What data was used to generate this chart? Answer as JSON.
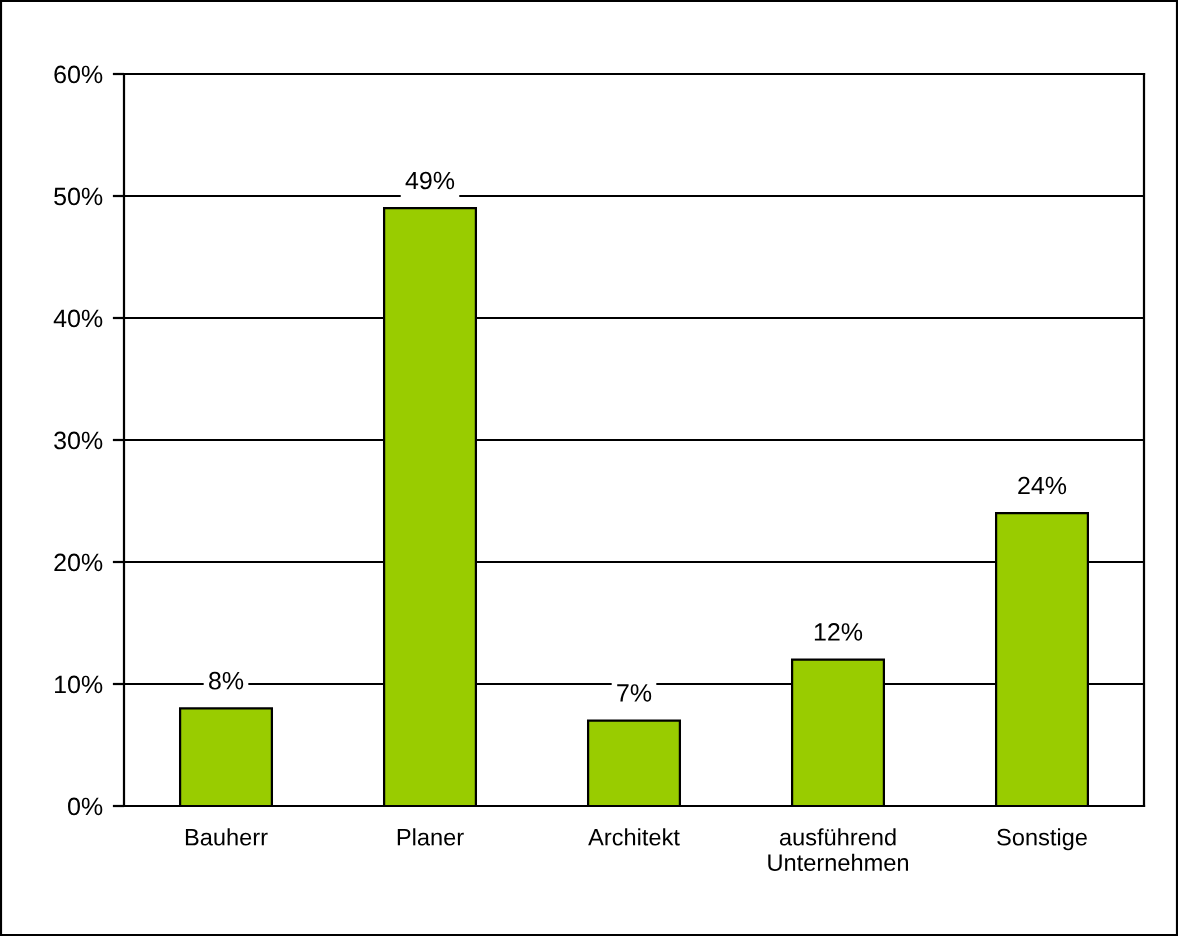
{
  "chart_data": {
    "type": "bar",
    "categories": [
      "Bauherr",
      "Planer",
      "Architekt",
      "ausführend\nUnternehmen",
      "Sonstige"
    ],
    "values": [
      8,
      49,
      7,
      12,
      24
    ],
    "value_labels": [
      "8%",
      "49%",
      "7%",
      "12%",
      "24%"
    ],
    "color": "#99cc00",
    "ylim": [
      0,
      60
    ],
    "yticks": [
      {
        "value": 0,
        "label": "0%"
      },
      {
        "value": 10,
        "label": "10%"
      },
      {
        "value": 20,
        "label": "20%"
      },
      {
        "value": 30,
        "label": "30%"
      },
      {
        "value": 40,
        "label": "40%"
      },
      {
        "value": 50,
        "label": "50%"
      },
      {
        "value": 60,
        "label": "60%"
      }
    ],
    "grid": "y",
    "legend": false
  }
}
